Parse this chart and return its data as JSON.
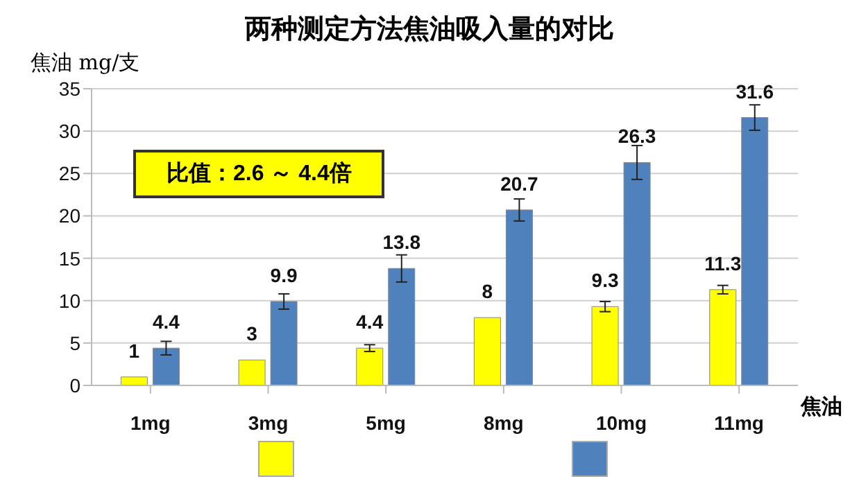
{
  "chart_data": {
    "type": "bar",
    "title": "两种测定方法焦油吸入量的对比",
    "ylabel": "焦油 mg/支",
    "xlabel": "焦油",
    "categories": [
      "1mg",
      "3mg",
      "5mg",
      "8mg",
      "10mg",
      "11mg"
    ],
    "series": [
      {
        "color": "#ffff00",
        "values": [
          1,
          3,
          4.4,
          8,
          9.3,
          11.3
        ],
        "errors": [
          null,
          null,
          0.4,
          null,
          0.6,
          0.5
        ]
      },
      {
        "color": "#4f81bd",
        "values": [
          4.4,
          9.9,
          13.8,
          20.7,
          26.3,
          31.6
        ],
        "errors": [
          0.8,
          0.9,
          1.6,
          1.3,
          2,
          1.5
        ]
      }
    ],
    "ylim": [
      0,
      35
    ],
    "yticks": [
      0,
      5,
      10,
      15,
      20,
      25,
      30,
      35
    ],
    "grid": "y",
    "data_labels": true,
    "annotations": [
      "比值：2.6 ～ 4.4倍"
    ]
  }
}
